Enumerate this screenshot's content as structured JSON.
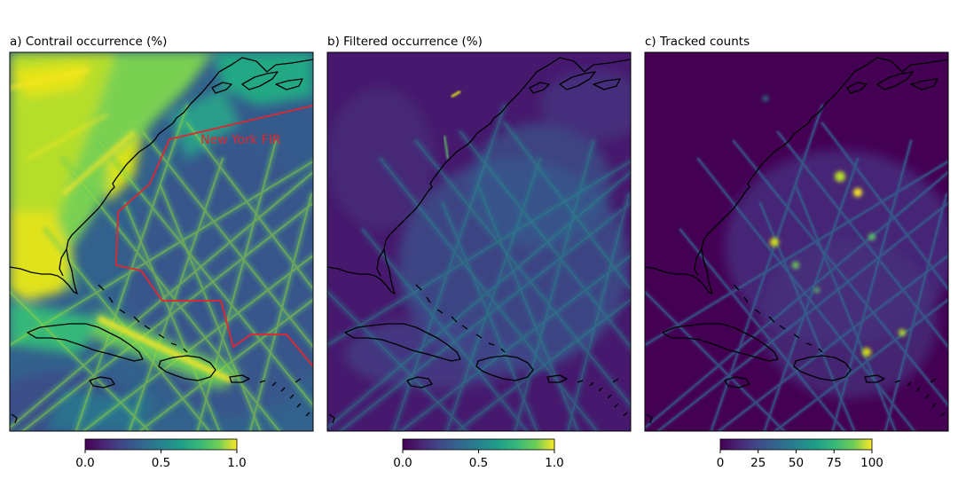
{
  "panels": [
    {
      "title": "a) Contrail occurrence (%)",
      "overlay_label": "New York FIR",
      "colorbar_ticks": [
        "0.0",
        "0.5",
        "1.0"
      ]
    },
    {
      "title": "b) Filtered occurrence (%)",
      "colorbar_ticks": [
        "0.0",
        "0.5",
        "1.0"
      ]
    },
    {
      "title": "c) Tracked counts",
      "colorbar_ticks": [
        "0",
        "25",
        "50",
        "75",
        "100"
      ]
    }
  ],
  "colormap": "viridis",
  "colors": {
    "viridis_dark": "#440154",
    "viridis_blue": "#31688e",
    "viridis_teal": "#21918c",
    "viridis_green": "#5ec962",
    "viridis_yellow": "#fde725",
    "fir_boundary": "#e3262b",
    "coastline": "#000000"
  }
}
